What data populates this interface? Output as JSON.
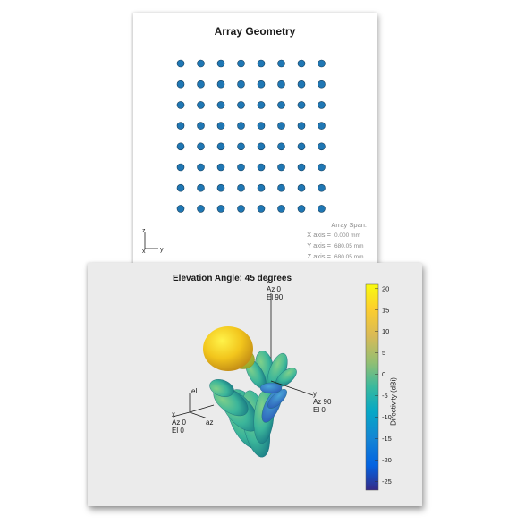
{
  "geometry": {
    "title": "Array Geometry",
    "element_grid": {
      "rows": 8,
      "cols": 8
    },
    "element_color": "#1f77b4",
    "triad": {
      "z": "z",
      "x": "x",
      "y": "y"
    },
    "span": {
      "title": "Array Span:",
      "rows": [
        {
          "label": "X axis =",
          "value": "0.000 mm"
        },
        {
          "label": "Y axis =",
          "value": "680.05 mm"
        },
        {
          "label": "Z axis =",
          "value": "680.05 mm"
        }
      ]
    }
  },
  "pattern": {
    "title": "Elevation Angle: 45 degrees",
    "labels": {
      "z_axis": [
        "z",
        "Az 0",
        "El 90"
      ],
      "y_axis": [
        "y",
        "Az 90",
        "El 0"
      ],
      "x_axis": [
        "x",
        "Az 0",
        "El 0"
      ],
      "az": "az",
      "el": "el"
    },
    "colorbar": {
      "label": "Directivity (dBi)",
      "ticks": [
        "20",
        "15",
        "10",
        "5",
        "0",
        "-5",
        "-10",
        "-15",
        "-20",
        "-25"
      ],
      "colormap": "parula",
      "range": [
        -27,
        21
      ]
    }
  }
}
